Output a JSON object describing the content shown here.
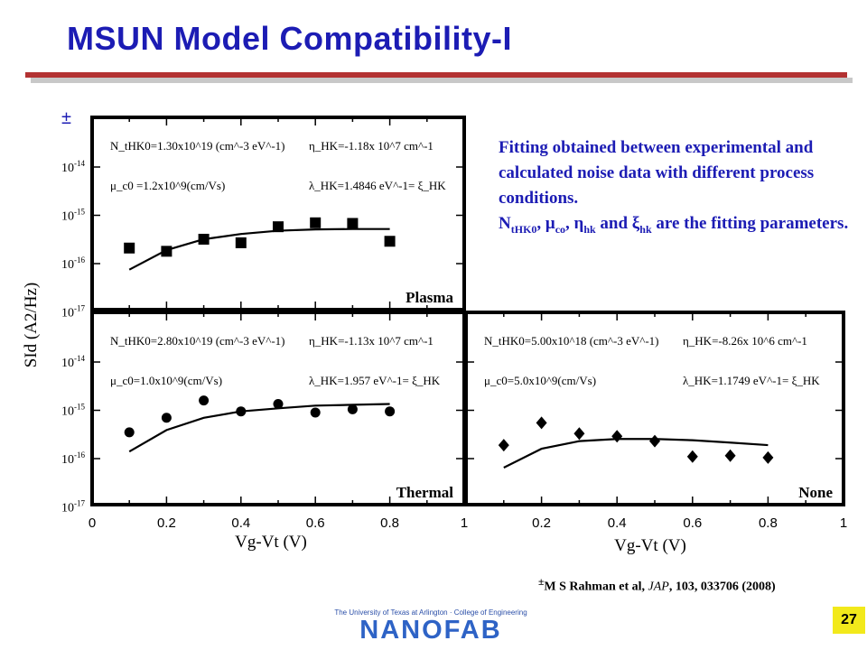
{
  "slide": {
    "title": "MSUN Model Compatibility-I",
    "plus_minus": "±",
    "description": {
      "line1": "Fitting obtained between experimental and calculated noise data with different process conditions.",
      "n": "N",
      "n_sub": "tHK0",
      "mu": ", μ",
      "mu_sub": "co",
      "eta": ", η",
      "eta_sub": "hk",
      "and": " and ξ",
      "xi_sub": "hk",
      "tail": " are the fitting parameters."
    },
    "citation": {
      "mark": "±",
      "authors": "M S Rahman et al, ",
      "journal": "JAP",
      "rest": ", 103, 033706 (2008)"
    },
    "page_number": "27",
    "logo": {
      "top_text": "The University of Texas at Arlington · College of Engineering",
      "main_text": "NANOFAB"
    }
  },
  "chart_data": [
    {
      "type": "scatter",
      "panel_label": "Plasma",
      "marker": "square",
      "x": [
        0.1,
        0.2,
        0.3,
        0.4,
        0.5,
        0.6,
        0.7,
        0.8
      ],
      "y": [
        2.1e-16,
        1.8e-16,
        3.2e-16,
        2.7e-16,
        5.8e-16,
        7e-16,
        6.8e-16,
        2.9e-16
      ],
      "fit": {
        "x": [
          0.1,
          0.2,
          0.3,
          0.4,
          0.5,
          0.6,
          0.7,
          0.8
        ],
        "y": [
          7.5e-17,
          1.9e-16,
          3.2e-16,
          4.1e-16,
          4.8e-16,
          5.1e-16,
          5.2e-16,
          5.2e-16
        ]
      },
      "params": [
        "N_tHK0=1.30x10^19 (cm^-3 eV^-1)",
        "η_HK=-1.18x 10^7 cm^-1",
        "μ_c0 =1.2x10^9(cm/Vs)",
        "λ_HK=1.4846 eV^-1= ξ_HK"
      ],
      "ylim": [
        1e-17,
        1e-13
      ],
      "yscale": "log"
    },
    {
      "type": "scatter",
      "panel_label": "Thermal",
      "marker": "circle",
      "x": [
        0.1,
        0.2,
        0.3,
        0.4,
        0.5,
        0.6,
        0.7,
        0.8
      ],
      "y": [
        3.5e-16,
        7e-16,
        1.6e-15,
        9.5e-16,
        1.35e-15,
        9e-16,
        1.05e-15,
        9.5e-16
      ],
      "fit": {
        "x": [
          0.1,
          0.2,
          0.3,
          0.4,
          0.5,
          0.6,
          0.7,
          0.8
        ],
        "y": [
          1.4e-16,
          3.9e-16,
          7e-16,
          9.5e-16,
          1.1e-15,
          1.25e-15,
          1.3e-15,
          1.35e-15
        ]
      },
      "params": [
        "N_tHK0=2.80x10^19 (cm^-3 eV^-1)",
        "η_HK=-1.13x 10^7 cm^-1",
        "μ_c0=1.0x10^9(cm/Vs)",
        "λ_HK=1.957 eV^-1= ξ_HK"
      ],
      "ylim": [
        1e-17,
        1e-13
      ],
      "yscale": "log"
    },
    {
      "type": "scatter",
      "panel_label": "None",
      "marker": "diamond",
      "x": [
        0.1,
        0.2,
        0.3,
        0.4,
        0.5,
        0.6,
        0.7,
        0.8
      ],
      "y": [
        1.9e-16,
        5.5e-16,
        3.3e-16,
        2.9e-16,
        2.3e-16,
        1.1e-16,
        1.15e-16,
        1.05e-16
      ],
      "fit": {
        "x": [
          0.1,
          0.2,
          0.3,
          0.4,
          0.5,
          0.6,
          0.7,
          0.8
        ],
        "y": [
          6.5e-17,
          1.6e-16,
          2.3e-16,
          2.55e-16,
          2.55e-16,
          2.4e-16,
          2.15e-16,
          1.9e-16
        ]
      },
      "params": [
        "N_tHK0=5.00x10^18 (cm^-3 eV^-1)",
        "η_HK=-8.26x 10^6 cm^-1",
        "μ_c0=5.0x10^9(cm/Vs)",
        "λ_HK=1.1749 eV^-1= ξ_HK"
      ],
      "ylim": [
        1e-17,
        1e-13
      ],
      "yscale": "log"
    }
  ],
  "axes": {
    "xlabel": "Vg-Vt (V)",
    "ylabel": "SId (A2/Hz)",
    "xticks": [
      "0",
      "0.2",
      "0.4",
      "0.6",
      "0.8",
      "1"
    ],
    "xlim": [
      0,
      1
    ],
    "yticks": [
      "10-14",
      "10-15",
      "10-16",
      "10-17"
    ]
  }
}
